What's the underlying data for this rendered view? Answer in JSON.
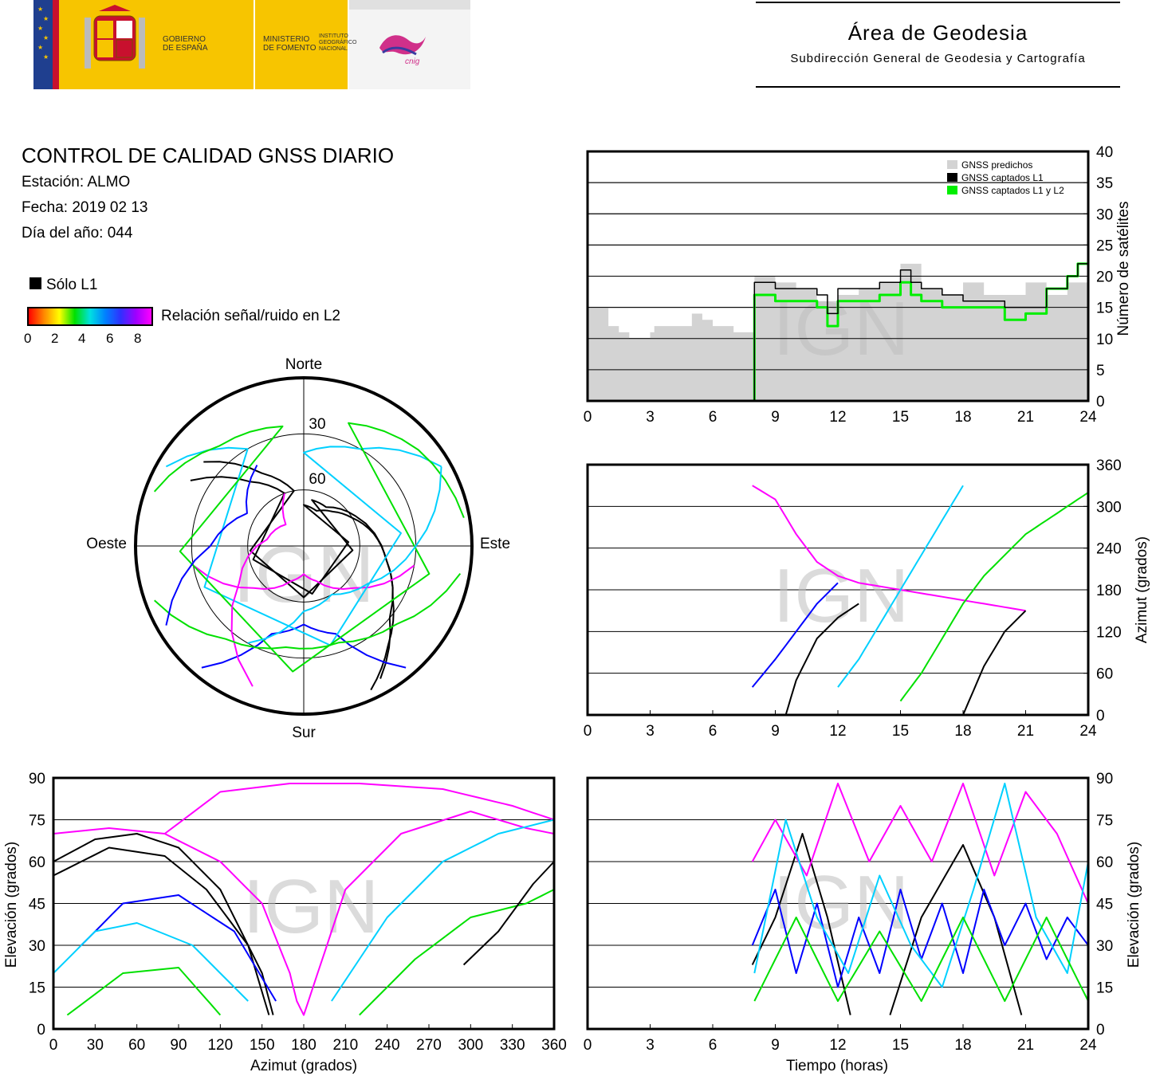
{
  "header": {
    "gobierno": "GOBIERNO\nDE ESPAÑA",
    "ministerio": "MINISTERIO\nDE FOMENTO",
    "instituto": "INSTITUTO\nGEOGRÁFICO\nNACIONAL",
    "cnig": "cnig",
    "area_title": "Área de Geodesia",
    "area_subtitle": "Subdirección General de Geodesia y Cartografía"
  },
  "info": {
    "title": "CONTROL DE CALIDAD GNSS DIARIO",
    "station": "Estación: ALMO",
    "date": "Fecha: 2019 02 13",
    "doy": "Día del año: 044",
    "legend_l1": "Sólo L1",
    "colorbar_label": "Relación señal/ruido en L2",
    "colorbar_ticks": [
      "0",
      "2",
      "4",
      "6",
      "8"
    ]
  },
  "watermark": "IGN",
  "chart_data": [
    {
      "id": "satellite-count",
      "type": "area",
      "ylabel": "Número de satélites",
      "x_ticks": [
        "0",
        "3",
        "6",
        "9",
        "12",
        "15",
        "18",
        "21",
        "24"
      ],
      "y_ticks": [
        "0",
        "5",
        "10",
        "15",
        "20",
        "25",
        "30",
        "35",
        "40"
      ],
      "xlim": [
        0,
        24
      ],
      "ylim": [
        0,
        40
      ],
      "grid": true,
      "legend_position": "top-right",
      "series": [
        {
          "name": "GNSS predichos",
          "color": "#d3d3d3",
          "x": [
            0,
            1,
            1.5,
            2,
            3,
            3.2,
            4,
            5,
            5.5,
            6,
            6.5,
            7,
            7.9,
            8,
            9,
            10,
            11,
            12,
            13,
            14,
            15,
            16,
            17,
            18,
            19,
            20,
            21,
            22,
            23,
            24
          ],
          "values": [
            15,
            12,
            11,
            10,
            11,
            12,
            12,
            14,
            13,
            12,
            12,
            11,
            11,
            20,
            19,
            18,
            16,
            17,
            18,
            19,
            22,
            18,
            17,
            19,
            17,
            17,
            19,
            17,
            19,
            21
          ]
        },
        {
          "name": "GNSS captados L1",
          "color": "#000000",
          "x": [
            7.8,
            7.9,
            8,
            9,
            10,
            11,
            11.5,
            12,
            13,
            14,
            15,
            15.5,
            16,
            17,
            18,
            19,
            20,
            21,
            22,
            23,
            23.5,
            24
          ],
          "values": [
            0,
            0,
            19,
            18,
            18,
            17,
            14,
            18,
            18,
            19,
            21,
            19,
            18,
            17,
            16,
            16,
            15,
            15,
            18,
            20,
            22,
            21
          ]
        },
        {
          "name": "GNSS captados L1 y L2",
          "color": "#00ee00",
          "x": [
            7.8,
            7.9,
            8,
            9,
            10,
            11,
            11.5,
            12,
            13,
            14,
            15,
            15.5,
            16,
            17,
            18,
            19,
            20,
            21,
            22,
            23,
            23.5,
            24
          ],
          "values": [
            0,
            0,
            17,
            16,
            16,
            15,
            12,
            16,
            16,
            17,
            19,
            17,
            16,
            15,
            15,
            15,
            13,
            14,
            18,
            20,
            22,
            21
          ]
        }
      ]
    },
    {
      "id": "azimuth-time",
      "type": "scatter",
      "ylabel": "Azimut (grados)",
      "x_ticks": [
        "0",
        "3",
        "6",
        "9",
        "12",
        "15",
        "18",
        "21",
        "24"
      ],
      "y_ticks": [
        "0",
        "60",
        "120",
        "180",
        "240",
        "300",
        "360"
      ],
      "xlim": [
        0,
        24
      ],
      "ylim": [
        0,
        360
      ],
      "grid": true,
      "series": [
        {
          "color": "#ff00ff",
          "x": [
            7.9,
            9,
            10,
            11,
            12,
            13,
            14,
            15,
            16,
            17,
            18,
            19,
            20,
            21
          ],
          "values": [
            330,
            310,
            260,
            220,
            200,
            190,
            185,
            180,
            175,
            170,
            165,
            160,
            155,
            150
          ]
        },
        {
          "color": "#0000ff",
          "x": [
            7.9,
            9,
            10,
            11,
            12
          ],
          "values": [
            40,
            80,
            120,
            160,
            190
          ]
        },
        {
          "color": "#00d0ff",
          "x": [
            12,
            13,
            14,
            15,
            16,
            17,
            18
          ],
          "values": [
            40,
            80,
            130,
            180,
            230,
            280,
            330
          ]
        },
        {
          "color": "#00e000",
          "x": [
            15,
            16,
            17,
            18,
            19,
            20,
            21,
            22,
            23,
            24
          ],
          "values": [
            20,
            60,
            110,
            160,
            200,
            230,
            260,
            280,
            300,
            320
          ]
        },
        {
          "color": "#000000",
          "x": [
            9.5,
            10,
            11,
            12,
            13
          ],
          "values": [
            0,
            50,
            110,
            140,
            160
          ]
        },
        {
          "color": "#000000",
          "x": [
            18,
            19,
            20,
            21
          ],
          "values": [
            0,
            70,
            120,
            150
          ]
        }
      ]
    },
    {
      "id": "elevation-azimuth",
      "type": "scatter",
      "xlabel": "Azimut (grados)",
      "ylabel": "Elevación (grados)",
      "x_ticks": [
        "0",
        "30",
        "60",
        "90",
        "120",
        "150",
        "180",
        "210",
        "240",
        "270",
        "300",
        "330",
        "360"
      ],
      "y_ticks": [
        "0",
        "15",
        "30",
        "45",
        "60",
        "75",
        "90"
      ],
      "xlim": [
        0,
        360
      ],
      "ylim": [
        0,
        90
      ],
      "grid": true,
      "series": [
        {
          "color": "#000000",
          "x": [
            0,
            30,
            60,
            90,
            120,
            150,
            158
          ],
          "values": [
            60,
            68,
            70,
            65,
            50,
            20,
            5
          ]
        },
        {
          "color": "#000000",
          "x": [
            0,
            40,
            80,
            110,
            140,
            155
          ],
          "values": [
            55,
            65,
            62,
            50,
            30,
            5
          ]
        },
        {
          "color": "#ff00ff",
          "x": [
            0,
            40,
            80,
            120,
            150,
            170,
            175,
            180,
            190,
            210,
            250,
            300,
            340,
            360
          ],
          "values": [
            70,
            72,
            70,
            60,
            45,
            20,
            10,
            5,
            20,
            50,
            70,
            78,
            72,
            70
          ]
        },
        {
          "color": "#ff00ff",
          "x": [
            80,
            120,
            170,
            220,
            280,
            330,
            360
          ],
          "values": [
            70,
            85,
            88,
            88,
            86,
            80,
            75
          ]
        },
        {
          "color": "#0000ff",
          "x": [
            20,
            50,
            90,
            130,
            160
          ],
          "values": [
            30,
            45,
            48,
            35,
            10
          ]
        },
        {
          "color": "#00d0ff",
          "x": [
            200,
            240,
            280,
            320,
            360
          ],
          "values": [
            10,
            40,
            60,
            70,
            75
          ]
        },
        {
          "color": "#00e000",
          "x": [
            220,
            260,
            300,
            340,
            360
          ],
          "values": [
            5,
            25,
            40,
            45,
            50
          ]
        },
        {
          "color": "#00d0ff",
          "x": [
            0,
            30,
            60,
            100,
            140
          ],
          "values": [
            20,
            35,
            38,
            30,
            10
          ]
        },
        {
          "color": "#00e000",
          "x": [
            10,
            50,
            90,
            120
          ],
          "values": [
            5,
            20,
            22,
            5
          ]
        },
        {
          "color": "#000000",
          "x": [
            295,
            320,
            345,
            360
          ],
          "values": [
            23,
            35,
            52,
            60
          ]
        }
      ]
    },
    {
      "id": "elevation-time",
      "type": "line",
      "xlabel": "Tiempo (horas)",
      "ylabel": "Elevación (grados)",
      "x_ticks": [
        "0",
        "3",
        "6",
        "9",
        "12",
        "15",
        "18",
        "21",
        "24"
      ],
      "y_ticks": [
        "0",
        "15",
        "30",
        "45",
        "60",
        "75",
        "90"
      ],
      "xlim": [
        0,
        24
      ],
      "ylim": [
        0,
        90
      ],
      "grid": true,
      "series": [
        {
          "color": "#000000",
          "x": [
            7.9,
            9,
            10.3,
            11.5,
            12.6
          ],
          "values": [
            23,
            40,
            70,
            40,
            5
          ]
        },
        {
          "color": "#000000",
          "x": [
            14.5,
            16,
            18,
            19.5,
            20.8
          ],
          "values": [
            5,
            40,
            66,
            40,
            5
          ]
        },
        {
          "color": "#ff00ff",
          "x": [
            7.9,
            9,
            10.5,
            12,
            13.5,
            15,
            16.5,
            18,
            19.5,
            21,
            22.5,
            24
          ],
          "values": [
            60,
            75,
            55,
            88,
            60,
            80,
            60,
            88,
            55,
            85,
            70,
            45
          ]
        },
        {
          "color": "#0000ff",
          "x": [
            7.9,
            9,
            10,
            11,
            12,
            13,
            14,
            15,
            16,
            17,
            18,
            19,
            20,
            21,
            22,
            23,
            24
          ],
          "values": [
            30,
            50,
            20,
            45,
            15,
            40,
            20,
            50,
            25,
            45,
            20,
            50,
            30,
            45,
            25,
            40,
            30
          ]
        },
        {
          "color": "#00d0ff",
          "x": [
            8,
            9.5,
            11,
            12.5,
            14,
            15.5,
            17,
            18.5,
            20,
            21.5,
            23,
            24
          ],
          "values": [
            20,
            75,
            40,
            20,
            55,
            30,
            15,
            50,
            88,
            40,
            20,
            60
          ]
        },
        {
          "color": "#00e000",
          "x": [
            8,
            10,
            12,
            14,
            16,
            18,
            20,
            22,
            24
          ],
          "values": [
            10,
            40,
            10,
            35,
            10,
            40,
            10,
            40,
            10
          ]
        }
      ]
    },
    {
      "id": "skyplot",
      "type": "scatter",
      "labels": {
        "north": "Norte",
        "south": "Sur",
        "east": "Este",
        "west": "Oeste",
        "ring30": "30",
        "ring60": "60"
      },
      "series": [
        {
          "color": "#000000",
          "az": [
            300,
            320,
            340,
            0,
            20,
            40,
            60,
            80,
            100,
            120,
            140,
            155
          ],
          "el": [
            20,
            45,
            60,
            68,
            70,
            66,
            60,
            52,
            45,
            35,
            20,
            5
          ]
        },
        {
          "color": "#000000",
          "az": [
            310,
            330,
            350,
            10,
            30,
            60,
            100,
            130,
            150
          ],
          "el": [
            20,
            45,
            60,
            65,
            66,
            58,
            45,
            30,
            8
          ]
        },
        {
          "color": "#ff00ff",
          "az": [
            260,
            230,
            200,
            180,
            160,
            130,
            100
          ],
          "el": [
            30,
            55,
            70,
            75,
            70,
            55,
            30
          ]
        },
        {
          "color": "#0000ff",
          "az": [
            220,
            200,
            180,
            160,
            140
          ],
          "el": [
            5,
            40,
            48,
            40,
            5
          ]
        },
        {
          "color": "#00d0ff",
          "az": [
            300,
            330,
            0,
            30,
            60
          ],
          "el": [
            5,
            30,
            40,
            30,
            5
          ]
        },
        {
          "color": "#00e000",
          "az": [
            290,
            320,
            350,
            20,
            50,
            80
          ],
          "el": [
            5,
            20,
            25,
            20,
            10,
            3
          ]
        },
        {
          "color": "#00d0ff",
          "az": [
            60,
            90,
            120,
            150,
            180,
            210
          ],
          "el": [
            5,
            30,
            50,
            60,
            55,
            30
          ]
        },
        {
          "color": "#ff00ff",
          "az": [
            200,
            240,
            280,
            320,
            340
          ],
          "el": [
            10,
            50,
            70,
            75,
            60
          ]
        },
        {
          "color": "#00e000",
          "az": [
            100,
            130,
            160,
            190,
            220,
            250
          ],
          "el": [
            5,
            25,
            35,
            35,
            25,
            5
          ]
        },
        {
          "color": "#0000ff",
          "az": [
            240,
            270,
            300,
            330
          ],
          "el": [
            5,
            40,
            55,
            40
          ]
        }
      ]
    }
  ]
}
